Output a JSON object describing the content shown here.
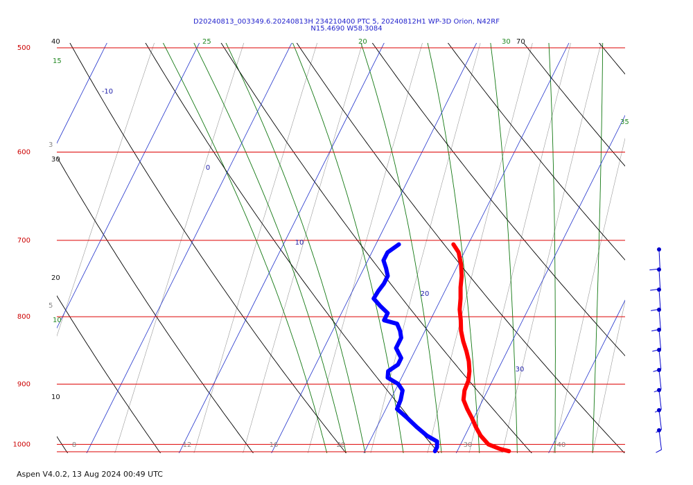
{
  "title_line1": "D20240813_003349.6.20240813H 234210400 PTC 5, 20240812H1 WP-3D Orion, N42RF",
  "title_line2": "N15.4690 W58.3084",
  "footer": "Aspen V4.0.2, 13 Aug 2024  00:49 UTC",
  "colors": {
    "isobar": "#dd0000",
    "temperature": "#ff0000",
    "dewpoint": "#0000ff",
    "isotherm": "#2233cc",
    "dry_adiabat": "#000000",
    "moist_adiabat": "#117711",
    "mixing_ratio": "#999999",
    "wind_barb": "#0000cc"
  },
  "chart_data": {
    "type": "skew-t",
    "pressure_range_hpa": [
      500,
      1013
    ],
    "pressure_labels": [
      "500",
      "600",
      "700",
      "800",
      "900",
      "1000"
    ],
    "bottom_labels": [
      "8",
      "12",
      "16",
      "20",
      "30",
      "40"
    ],
    "isotherm_labels": [
      "-10",
      "0",
      "10",
      "20",
      "30"
    ],
    "dry_adiabat_labels": [
      "40",
      "30",
      "20",
      "10",
      "70"
    ],
    "moist_adiabat_labels": [
      "15",
      "10",
      "25",
      "20",
      "30",
      "35"
    ],
    "mixing_ratio_labels": [
      "3",
      "5"
    ],
    "series": [
      {
        "name": "Temperature",
        "points": [
          [
            705,
            8.4
          ],
          [
            715,
            9.4
          ],
          [
            730,
            10.3
          ],
          [
            745,
            11.0
          ],
          [
            760,
            11.5
          ],
          [
            775,
            12.1
          ],
          [
            790,
            12.6
          ],
          [
            805,
            13.3
          ],
          [
            820,
            13.9
          ],
          [
            835,
            14.7
          ],
          [
            850,
            15.6
          ],
          [
            865,
            16.4
          ],
          [
            880,
            17.0
          ],
          [
            895,
            17.4
          ],
          [
            910,
            17.5
          ],
          [
            925,
            17.9
          ],
          [
            940,
            18.8
          ],
          [
            955,
            19.8
          ],
          [
            970,
            20.7
          ],
          [
            985,
            21.7
          ],
          [
            1000,
            23.0
          ],
          [
            1008,
            24.5
          ],
          [
            1012,
            25.6
          ]
        ]
      },
      {
        "name": "Dewpoint",
        "points": [
          [
            705,
            2.5
          ],
          [
            715,
            1.7
          ],
          [
            725,
            1.7
          ],
          [
            735,
            2.4
          ],
          [
            745,
            3.0
          ],
          [
            755,
            3.0
          ],
          [
            765,
            2.8
          ],
          [
            775,
            2.7
          ],
          [
            785,
            3.8
          ],
          [
            795,
            5.0
          ],
          [
            805,
            5.0
          ],
          [
            810,
            6.6
          ],
          [
            820,
            7.3
          ],
          [
            830,
            7.8
          ],
          [
            845,
            7.8
          ],
          [
            860,
            8.9
          ],
          [
            870,
            8.9
          ],
          [
            880,
            8.2
          ],
          [
            890,
            8.5
          ],
          [
            900,
            10.0
          ],
          [
            910,
            10.8
          ],
          [
            925,
            11.1
          ],
          [
            940,
            11.2
          ],
          [
            955,
            12.8
          ],
          [
            970,
            14.3
          ],
          [
            985,
            15.9
          ],
          [
            995,
            17.3
          ],
          [
            1005,
            17.6
          ],
          [
            1012,
            17.6
          ]
        ]
      }
    ],
    "wind_barbs_pressure_hpa": [
      720,
      750,
      780,
      810,
      845,
      880,
      915,
      950,
      985,
      1012
    ]
  }
}
